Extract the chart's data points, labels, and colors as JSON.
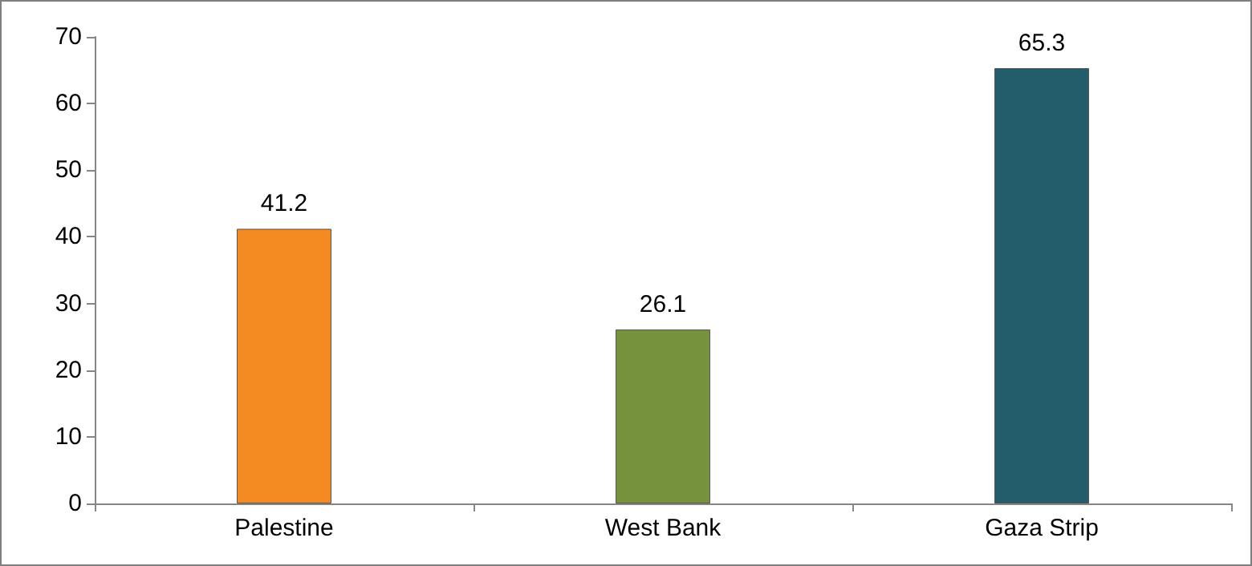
{
  "chart_data": {
    "type": "bar",
    "categories": [
      "Palestine",
      "West Bank",
      "Gaza Strip"
    ],
    "values": [
      41.2,
      26.1,
      65.3
    ],
    "colors": [
      "#f48a22",
      "#76923c",
      "#235d6b"
    ],
    "ylim": [
      0,
      70
    ],
    "yticks": [
      0,
      10,
      20,
      30,
      40,
      50,
      60,
      70
    ],
    "grid": false,
    "data_labels": true
  }
}
